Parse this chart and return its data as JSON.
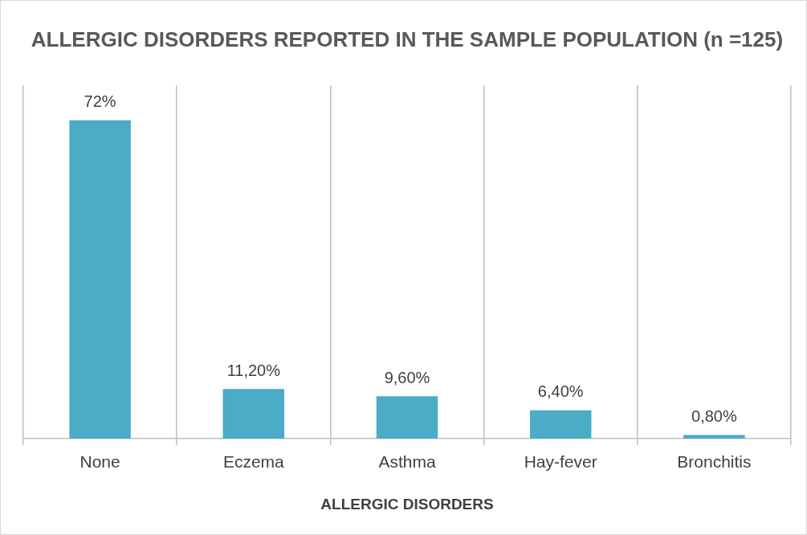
{
  "chart_data": {
    "type": "bar",
    "title": "ALLERGIC DISORDERS REPORTED IN THE SAMPLE POPULATION (n =125)",
    "xlabel": "ALLERGIC DISORDERS",
    "categories": [
      "None",
      "Eczema",
      "Asthma",
      "Hay-fever",
      "Bronchitis"
    ],
    "values": [
      72,
      11.2,
      9.6,
      6.4,
      0.8
    ],
    "value_labels": [
      "72%",
      "11,20%",
      "9,60%",
      "6,40%",
      "0,80%"
    ],
    "color": "#4bacc6",
    "grid": "x",
    "legend": false
  }
}
